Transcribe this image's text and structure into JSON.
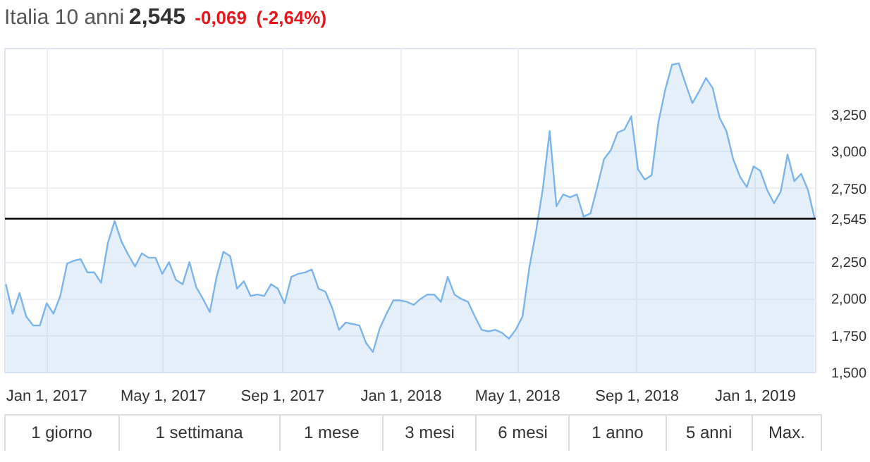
{
  "chart_data": {
    "type": "area",
    "title": "Italia 10 anni",
    "subtitle": "2,545",
    "annotations": [
      "-0,069",
      "(-2,64%)",
      "1 giorno",
      "1 settimana",
      "1 mese",
      "3 mesi",
      "6 mesi",
      "1 anno",
      "5 anni",
      "Max."
    ],
    "x": [
      "2016-11-20",
      "2016-11-27",
      "2016-12-04",
      "2016-12-11",
      "2016-12-18",
      "2016-12-25",
      "2017-01-01",
      "2017-01-08",
      "2017-01-15",
      "2017-01-22",
      "2017-01-29",
      "2017-02-05",
      "2017-02-12",
      "2017-02-19",
      "2017-02-26",
      "2017-03-05",
      "2017-03-12",
      "2017-03-19",
      "2017-03-26",
      "2017-04-02",
      "2017-04-09",
      "2017-04-16",
      "2017-04-23",
      "2017-04-30",
      "2017-05-07",
      "2017-05-14",
      "2017-05-21",
      "2017-05-28",
      "2017-06-04",
      "2017-06-11",
      "2017-06-18",
      "2017-06-25",
      "2017-07-02",
      "2017-07-09",
      "2017-07-16",
      "2017-07-23",
      "2017-07-30",
      "2017-08-06",
      "2017-08-13",
      "2017-08-20",
      "2017-08-27",
      "2017-09-03",
      "2017-09-10",
      "2017-09-17",
      "2017-09-24",
      "2017-10-01",
      "2017-10-08",
      "2017-10-15",
      "2017-10-22",
      "2017-10-29",
      "2017-11-05",
      "2017-11-12",
      "2017-11-19",
      "2017-11-26",
      "2017-12-03",
      "2017-12-10",
      "2017-12-17",
      "2017-12-24",
      "2017-12-31",
      "2018-01-07",
      "2018-01-14",
      "2018-01-21",
      "2018-01-28",
      "2018-02-04",
      "2018-02-11",
      "2018-02-18",
      "2018-02-25",
      "2018-03-04",
      "2018-03-11",
      "2018-03-18",
      "2018-03-25",
      "2018-04-01",
      "2018-04-08",
      "2018-04-15",
      "2018-04-22",
      "2018-04-29",
      "2018-05-06",
      "2018-05-13",
      "2018-05-20",
      "2018-05-27",
      "2018-06-03",
      "2018-06-10",
      "2018-06-17",
      "2018-06-24",
      "2018-07-01",
      "2018-07-08",
      "2018-07-15",
      "2018-07-22",
      "2018-07-29",
      "2018-08-05",
      "2018-08-12",
      "2018-08-19",
      "2018-08-26",
      "2018-09-02",
      "2018-09-09",
      "2018-09-16",
      "2018-09-23",
      "2018-09-30",
      "2018-10-07",
      "2018-10-14",
      "2018-10-21",
      "2018-10-28",
      "2018-11-04",
      "2018-11-11",
      "2018-11-18",
      "2018-11-25",
      "2018-12-02",
      "2018-12-09",
      "2018-12-16",
      "2018-12-23",
      "2018-12-30",
      "2019-01-06",
      "2019-01-13",
      "2019-01-20",
      "2019-01-27",
      "2019-02-03",
      "2019-02-10",
      "2019-02-17",
      "2019-02-24",
      "2019-03-03"
    ],
    "series": [
      {
        "color": "#7cb5ec",
        "values": [
          2.1,
          1.9,
          2.04,
          1.88,
          1.82,
          1.82,
          1.97,
          1.9,
          2.02,
          2.24,
          2.26,
          2.27,
          2.18,
          2.18,
          2.11,
          2.38,
          2.53,
          2.39,
          2.3,
          2.22,
          2.31,
          2.28,
          2.28,
          2.17,
          2.25,
          2.13,
          2.1,
          2.25,
          2.08,
          2.0,
          1.91,
          2.15,
          2.32,
          2.29,
          2.07,
          2.12,
          2.02,
          2.03,
          2.02,
          2.1,
          2.07,
          1.97,
          2.15,
          2.17,
          2.18,
          2.2,
          2.07,
          2.05,
          1.94,
          1.79,
          1.84,
          1.83,
          1.82,
          1.7,
          1.64,
          1.8,
          1.9,
          1.99,
          1.99,
          1.98,
          1.96,
          2.0,
          2.03,
          2.03,
          1.98,
          2.15,
          2.03,
          2.0,
          1.98,
          1.88,
          1.79,
          1.78,
          1.79,
          1.77,
          1.73,
          1.79,
          1.88,
          2.21,
          2.46,
          2.75,
          3.14,
          2.63,
          2.71,
          2.69,
          2.71,
          2.56,
          2.58,
          2.76,
          2.95,
          3.01,
          3.13,
          3.15,
          3.24,
          2.88,
          2.81,
          2.84,
          3.2,
          3.42,
          3.59,
          3.6,
          3.46,
          3.33,
          3.41,
          3.5,
          3.43,
          3.23,
          3.14,
          2.95,
          2.83,
          2.76,
          2.9,
          2.87,
          2.74,
          2.65,
          2.73,
          2.98,
          2.8,
          2.85,
          2.74,
          2.545
        ]
      }
    ],
    "xlim": [
      "2016-11-19",
      "2019-03-04"
    ],
    "xticks": [
      {
        "value": "2017-01-01",
        "label": "Jan 1, 2017"
      },
      {
        "value": "2017-05-01",
        "label": "May 1, 2017"
      },
      {
        "value": "2017-09-01",
        "label": "Sep 1, 2017"
      },
      {
        "value": "2018-01-01",
        "label": "Jan 1, 2018"
      },
      {
        "value": "2018-05-01",
        "label": "May 1, 2018"
      },
      {
        "value": "2018-09-01",
        "label": "Sep 1, 2018"
      },
      {
        "value": "2019-01-01",
        "label": "Jan 1, 2019"
      }
    ],
    "ylim": [
      1.5,
      3.7
    ],
    "yticks": [
      {
        "value": 1.5,
        "label": "1,500"
      },
      {
        "value": 1.75,
        "label": "1,750"
      },
      {
        "value": 2.0,
        "label": "2,000"
      },
      {
        "value": 2.25,
        "label": "2,250"
      },
      {
        "value": 2.75,
        "label": "2,750"
      },
      {
        "value": 3.0,
        "label": "3,000"
      },
      {
        "value": 3.25,
        "label": "3,250"
      }
    ],
    "ref_lines": [
      {
        "axis": "y",
        "value": 2.545,
        "label": "2,545",
        "color": "#000000"
      }
    ],
    "grid": true
  }
}
